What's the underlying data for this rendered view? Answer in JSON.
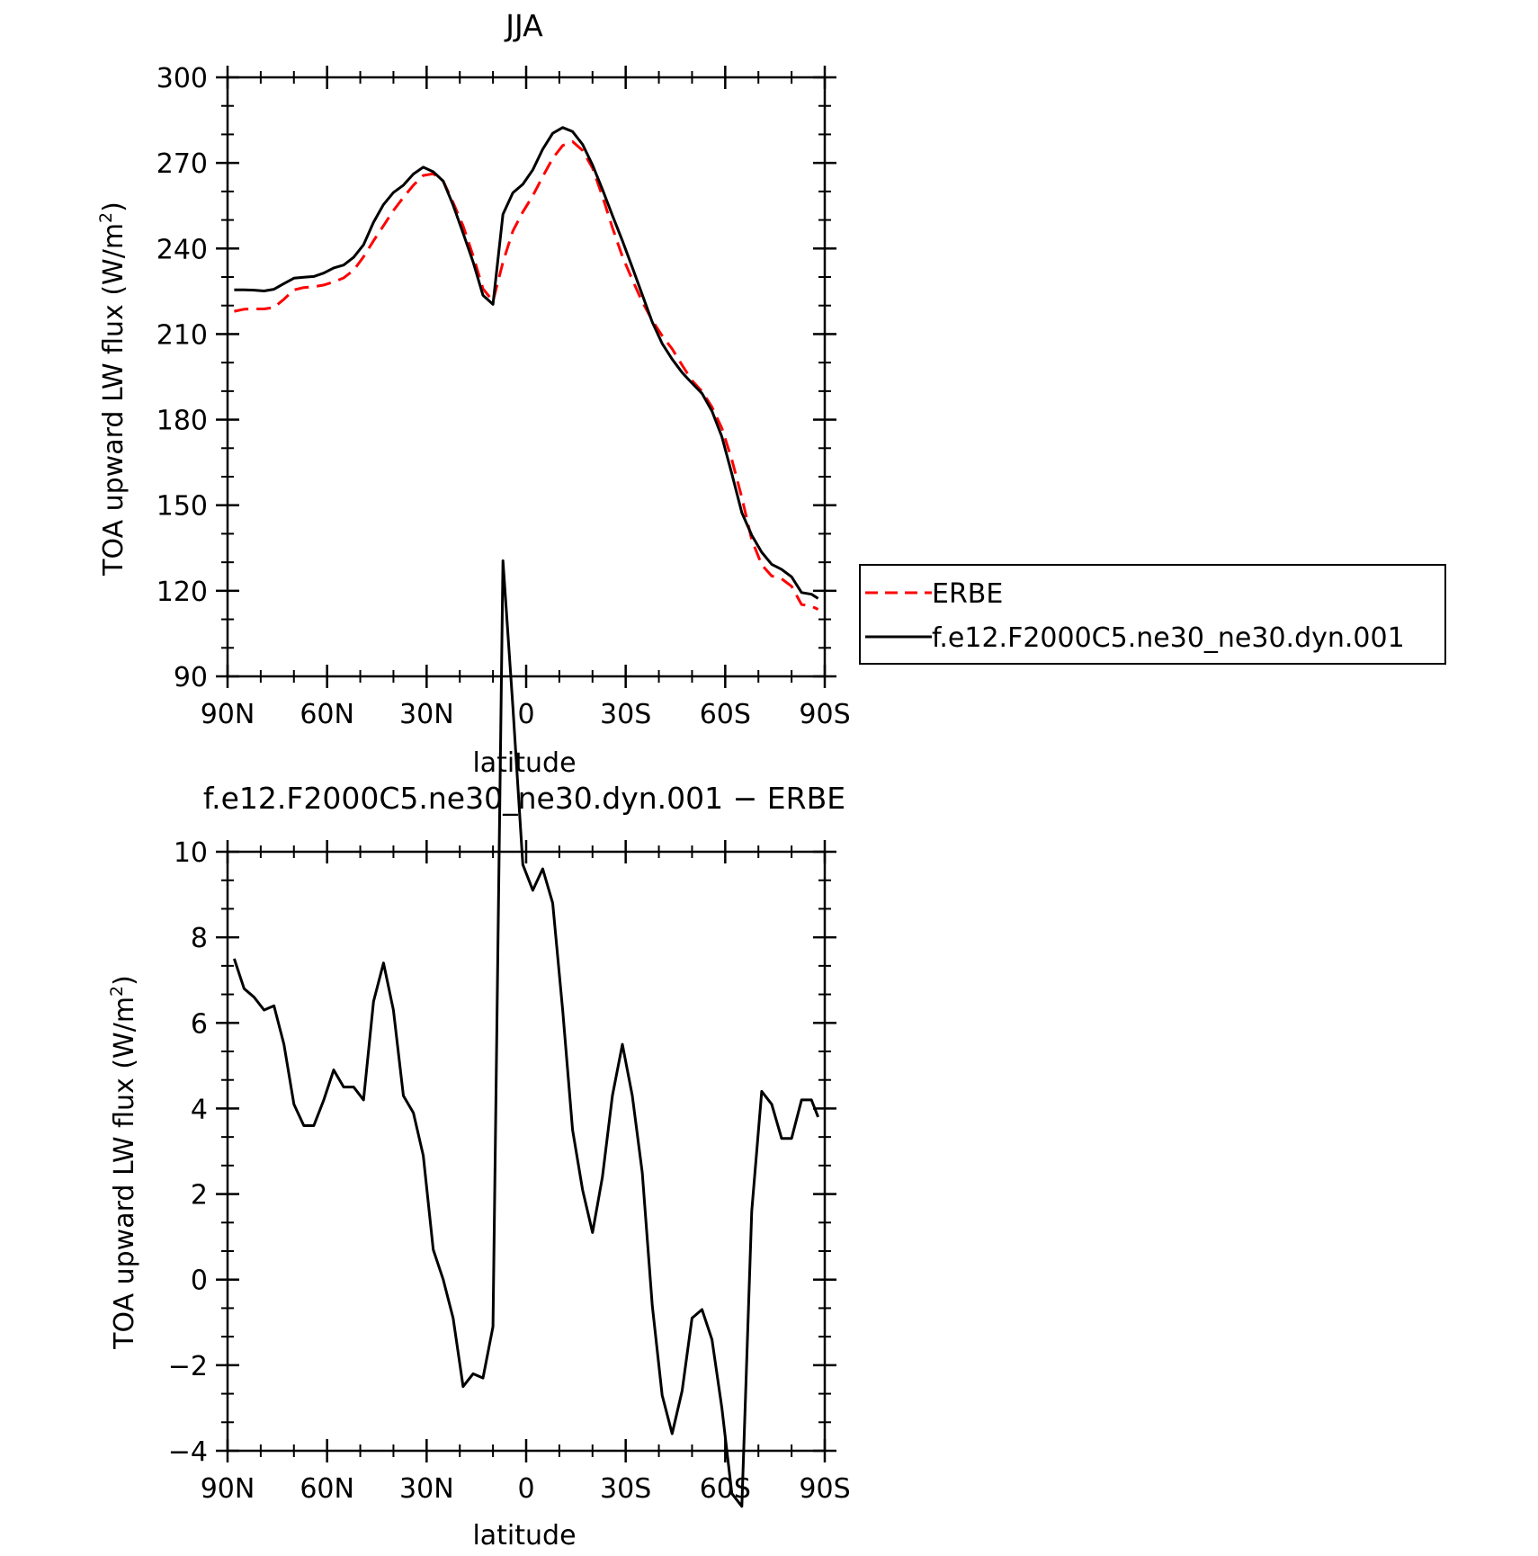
{
  "chart_data": [
    {
      "type": "line",
      "title": "JJA",
      "xlabel": "latitude",
      "ylabel": "TOA upward LW flux (W/m",
      "ylabel_sup": "2",
      "ylabel_close": ")",
      "xlim": [
        90,
        -90
      ],
      "ylim": [
        90,
        300
      ],
      "x_ticks": [
        90,
        60,
        30,
        0,
        -30,
        -60,
        -90
      ],
      "x_tick_labels": [
        "90N",
        "60N",
        "30N",
        "0",
        "30S",
        "60S",
        "90S"
      ],
      "y_ticks": [
        90,
        120,
        150,
        180,
        210,
        240,
        270,
        300
      ],
      "y_tick_labels": [
        "90",
        "120",
        "150",
        "180",
        "210",
        "240",
        "270",
        "300"
      ],
      "legend_position": "right",
      "series": [
        {
          "name": "ERBE",
          "color": "#ff0000",
          "style": "dashed",
          "x": [
            88,
            85,
            82,
            79,
            76,
            73,
            70,
            67,
            64,
            61,
            58,
            55,
            52,
            49,
            46,
            43,
            40,
            37,
            34,
            31,
            28,
            25,
            22,
            19,
            16,
            13,
            10,
            7,
            4,
            1,
            -2,
            -5,
            -8,
            -11,
            -14,
            -17,
            -20,
            -23,
            -26,
            -29,
            -32,
            -35,
            -38,
            -41,
            -44,
            -47,
            -50,
            -53,
            -56,
            -59,
            -62,
            -65,
            -68,
            -71,
            -74,
            -77,
            -80,
            -83,
            -86,
            -88
          ],
          "values": [
            218,
            218.7,
            218.8,
            218.8,
            219.3,
            222.2,
            225.5,
            226.3,
            226.6,
            227.2,
            228.3,
            229.7,
            232.4,
            237.1,
            242.7,
            248.0,
            253.3,
            257.9,
            262.2,
            265.6,
            266.2,
            263.6,
            256.1,
            247.9,
            237.5,
            225.9,
            221.5,
            235.2,
            246.1,
            252.8,
            258.5,
            265.2,
            271.6,
            276.1,
            277.5,
            274.4,
            268.2,
            258.3,
            247.3,
            237.2,
            229.1,
            221.3,
            214.8,
            209.4,
            204.8,
            199.1,
            193.7,
            189.9,
            184.4,
            177.0,
            166.0,
            152.7,
            137.9,
            129.1,
            125.2,
            124.2,
            121.6,
            115.2,
            114.6,
            113.5
          ]
        },
        {
          "name": "f.e12.F2000C5.ne30_ne30.dyn.001",
          "color": "#000000",
          "style": "solid",
          "x": [
            88,
            85,
            82,
            79,
            76,
            73,
            70,
            67,
            64,
            61,
            58,
            55,
            52,
            49,
            46,
            43,
            40,
            37,
            34,
            31,
            28,
            25,
            22,
            19,
            16,
            13,
            10,
            7,
            4,
            1,
            -2,
            -5,
            -8,
            -11,
            -14,
            -17,
            -20,
            -23,
            -26,
            -29,
            -32,
            -35,
            -38,
            -41,
            -44,
            -47,
            -50,
            -53,
            -56,
            -59,
            -62,
            -65,
            -68,
            -71,
            -74,
            -77,
            -80,
            -83,
            -86,
            -88
          ],
          "values": [
            225.5,
            225.5,
            225.4,
            225.1,
            225.7,
            227.7,
            229.6,
            229.9,
            230.2,
            231.4,
            233.2,
            234.2,
            236.9,
            241.3,
            249.2,
            255.4,
            259.6,
            262.2,
            266.1,
            268.5,
            266.9,
            263.6,
            255.2,
            245.4,
            235.3,
            223.6,
            220.4,
            252.0,
            259.5,
            262.5,
            267.6,
            274.8,
            280.4,
            282.4,
            281.0,
            276.5,
            269.3,
            260.7,
            251.6,
            242.7,
            233.4,
            223.8,
            214.2,
            206.7,
            201.2,
            196.5,
            192.8,
            189.2,
            183.0,
            174.0,
            161.0,
            147.4,
            139.5,
            133.5,
            129.3,
            127.5,
            124.9,
            119.4,
            118.8,
            117.3
          ]
        }
      ]
    },
    {
      "type": "line",
      "title": "f.e12.F2000C5.ne30_ne30.dyn.001 − ERBE",
      "xlabel": "latitude",
      "ylabel": "TOA upward LW flux (W/m",
      "ylabel_sup": "2",
      "ylabel_close": ")",
      "xlim": [
        90,
        -90
      ],
      "ylim": [
        -4,
        10
      ],
      "x_ticks": [
        90,
        60,
        30,
        0,
        -30,
        -60,
        -90
      ],
      "x_tick_labels": [
        "90N",
        "60N",
        "30N",
        "0",
        "30S",
        "60S",
        "90S"
      ],
      "y_ticks": [
        -4,
        -2,
        0,
        2,
        4,
        6,
        8,
        10
      ],
      "y_tick_labels": [
        "−4",
        "−2",
        "0",
        "2",
        "4",
        "6",
        "8",
        "10"
      ],
      "series": [
        {
          "color": "#000000",
          "style": "solid",
          "x": [
            88,
            85,
            82,
            79,
            76,
            73,
            70,
            67,
            64,
            61,
            58,
            55,
            52,
            49,
            46,
            43,
            40,
            37,
            34,
            31,
            28,
            25,
            22,
            19,
            16,
            13,
            10,
            7,
            4,
            1,
            -2,
            -5,
            -8,
            -11,
            -14,
            -17,
            -20,
            -23,
            -26,
            -29,
            -32,
            -35,
            -38,
            -41,
            -44,
            -47,
            -50,
            -53,
            -56,
            -59,
            -62,
            -65,
            -68,
            -71,
            -74,
            -77,
            -80,
            -83,
            -86,
            -88
          ],
          "values": [
            7.5,
            6.8,
            6.6,
            6.3,
            6.4,
            5.5,
            4.1,
            3.6,
            3.6,
            4.2,
            4.9,
            4.5,
            4.5,
            4.2,
            6.5,
            7.4,
            6.3,
            4.3,
            3.9,
            2.9,
            0.7,
            0.0,
            -0.9,
            -2.5,
            -2.2,
            -2.3,
            -1.1,
            16.8,
            13.4,
            9.7,
            9.1,
            9.6,
            8.8,
            6.3,
            3.5,
            2.1,
            1.1,
            2.4,
            4.3,
            5.5,
            4.3,
            2.5,
            -0.6,
            -2.7,
            -3.6,
            -2.6,
            -0.9,
            -0.7,
            -1.4,
            -3.0,
            -5.0,
            -5.3,
            1.6,
            4.4,
            4.1,
            3.3,
            3.3,
            4.2,
            4.2,
            3.8
          ]
        }
      ]
    }
  ]
}
